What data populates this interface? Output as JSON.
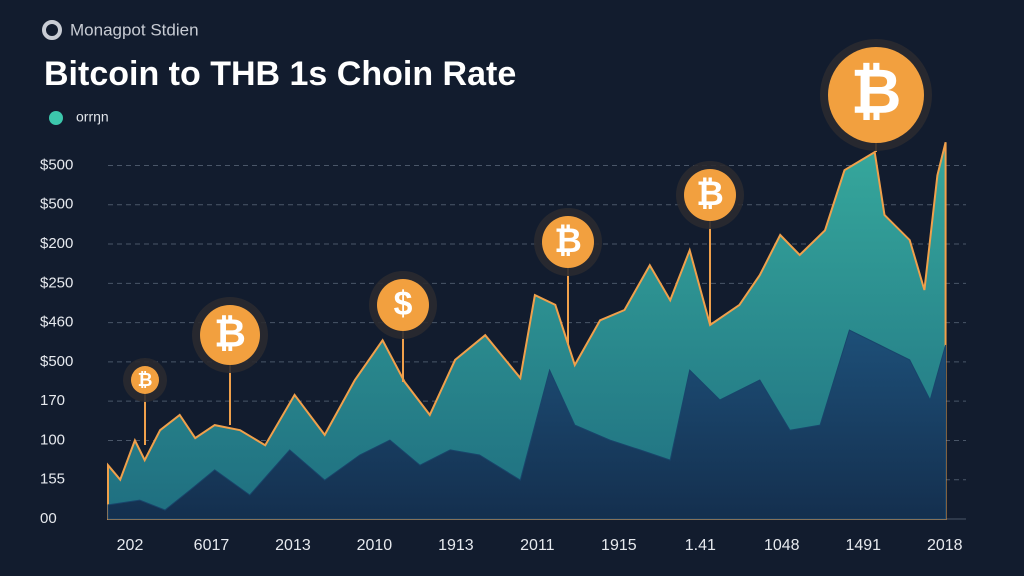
{
  "brand": "Monagpot Stdien",
  "chart_data": {
    "type": "area",
    "title": "Bitcoin to THB 1s Choin Rate",
    "legend": "orrŋn",
    "markers": [
      "₿",
      "₿",
      "$",
      "₿",
      "₿",
      "₿"
    ],
    "xlim": [
      -0.27,
      10.04
    ],
    "xticks": [
      {
        "value": 0,
        "label": "202"
      },
      {
        "value": 1,
        "label": "6017"
      },
      {
        "value": 2,
        "label": "2013"
      },
      {
        "value": 3,
        "label": "2010"
      },
      {
        "value": 4,
        "label": "1913"
      },
      {
        "value": 5,
        "label": "2011"
      },
      {
        "value": 6,
        "label": "1915"
      },
      {
        "value": 7,
        "label": "1.41"
      },
      {
        "value": 8,
        "label": "1048"
      },
      {
        "value": 9,
        "label": "1491"
      },
      {
        "value": 10,
        "label": "2018"
      }
    ],
    "ylim": [
      0,
      9.7
    ],
    "yticks": [
      {
        "value": 0,
        "label": "00"
      },
      {
        "value": 1,
        "label": "155"
      },
      {
        "value": 2,
        "label": "100"
      },
      {
        "value": 3,
        "label": "170"
      },
      {
        "value": 4,
        "label": "$500"
      },
      {
        "value": 5,
        "label": "$460"
      },
      {
        "value": 6,
        "label": "$250"
      },
      {
        "value": 7,
        "label": "$200"
      },
      {
        "value": 8,
        "label": "$500"
      },
      {
        "value": 9,
        "label": "$500"
      }
    ],
    "grid": true,
    "series": [
      {
        "color": "#2a8f8c",
        "line": "#f0a04b",
        "x": [
          -0.27,
          -0.12,
          0.06,
          0.18,
          0.37,
          0.61,
          0.8,
          1.04,
          1.35,
          1.66,
          2.02,
          2.39,
          2.76,
          3.1,
          3.37,
          3.68,
          3.99,
          4.36,
          4.79,
          4.97,
          5.22,
          5.46,
          5.77,
          6.07,
          6.38,
          6.63,
          6.87,
          7.12,
          7.48,
          7.73,
          7.98,
          8.22,
          8.53,
          8.77,
          9.14,
          9.26,
          9.57,
          9.75,
          9.91,
          10.01
        ],
        "values": [
          1.37,
          1.0,
          2.0,
          1.5,
          2.26,
          2.65,
          2.06,
          2.39,
          2.26,
          1.88,
          3.16,
          2.14,
          3.54,
          4.55,
          3.49,
          2.65,
          4.05,
          4.68,
          3.59,
          5.7,
          5.45,
          3.92,
          5.06,
          5.32,
          6.46,
          5.57,
          6.84,
          4.94,
          5.45,
          6.21,
          7.23,
          6.72,
          7.35,
          8.88,
          9.34,
          7.74,
          7.1,
          5.83,
          8.75,
          9.59
        ]
      },
      {
        "color": "#18456b",
        "x": [
          -0.27,
          0.12,
          0.43,
          0.74,
          1.04,
          1.47,
          1.96,
          2.39,
          2.82,
          3.19,
          3.56,
          3.93,
          4.29,
          4.79,
          5.15,
          5.46,
          5.89,
          6.26,
          6.63,
          6.87,
          7.24,
          7.73,
          8.1,
          8.47,
          8.83,
          9.2,
          9.57,
          9.82,
          10.01
        ],
        "values": [
          0.36,
          0.48,
          0.23,
          0.74,
          1.25,
          0.61,
          1.76,
          0.99,
          1.63,
          2.01,
          1.37,
          1.76,
          1.63,
          0.99,
          3.79,
          2.39,
          2.01,
          1.76,
          1.5,
          3.79,
          3.03,
          3.54,
          2.26,
          2.39,
          4.81,
          4.43,
          4.05,
          3.03,
          4.43
        ]
      }
    ]
  }
}
